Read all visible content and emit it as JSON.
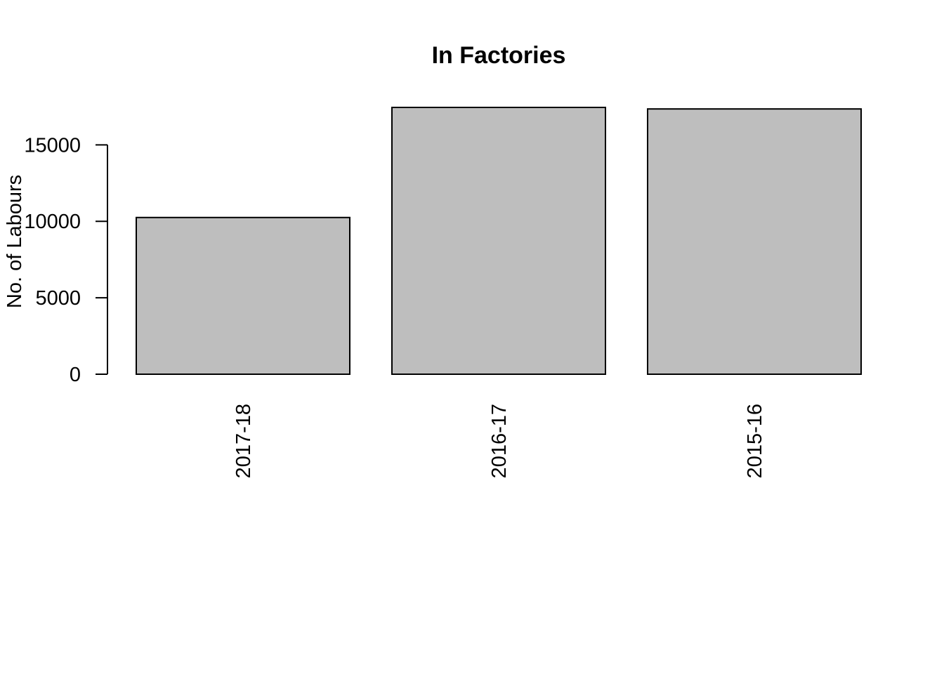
{
  "chart_data": {
    "type": "bar",
    "title": "In Factories",
    "xlabel": "",
    "ylabel": "No. of Labours",
    "categories": [
      "2017-18",
      "2016-17",
      "2015-16"
    ],
    "values": [
      10250,
      17450,
      17350
    ],
    "ylim": [
      0,
      17450
    ],
    "yticks": [
      0,
      5000,
      10000,
      15000
    ],
    "ytick_labels": [
      "0",
      "5000",
      "10000",
      "15000"
    ],
    "bar_color": "#bebebe",
    "bar_border_color": "#000000",
    "grid": false,
    "legend": "none",
    "x_tick_label_orientation": "vertical"
  }
}
